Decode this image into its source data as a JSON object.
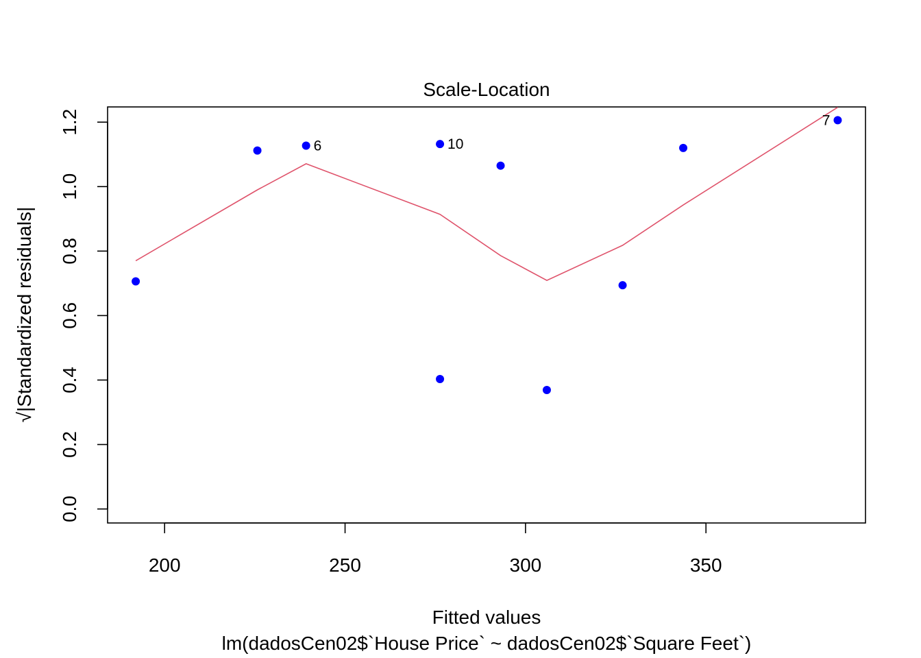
{
  "chart_data": {
    "type": "scatter",
    "title": "Scale-Location",
    "xlabel": "Fitted values",
    "ylabel": "√|Standardized residuals|",
    "subtitle": "lm(dadosCen02$`House Price` ~ dadosCen02$`Square Feet`)",
    "xlim": [
      184.2,
      394.2
    ],
    "ylim": [
      -0.0434,
      1.2472
    ],
    "xticks": [
      200,
      250,
      300,
      350
    ],
    "yticks": [
      0.0,
      0.2,
      0.4,
      0.6,
      0.8,
      1.0,
      1.2
    ],
    "ytick_labels": [
      "0.0",
      "0.2",
      "0.4",
      "0.6",
      "0.8",
      "1.0",
      "1.2"
    ],
    "point_color": "#0000ff",
    "line_color": "#df536b",
    "points": [
      {
        "x": 192.0,
        "y": 0.706,
        "label": ""
      },
      {
        "x": 225.7,
        "y": 1.112,
        "label": ""
      },
      {
        "x": 239.2,
        "y": 1.127,
        "label": "6"
      },
      {
        "x": 276.3,
        "y": 1.132,
        "label": "10"
      },
      {
        "x": 276.3,
        "y": 0.403,
        "label": ""
      },
      {
        "x": 293.1,
        "y": 1.065,
        "label": ""
      },
      {
        "x": 305.9,
        "y": 0.369,
        "label": ""
      },
      {
        "x": 326.9,
        "y": 0.694,
        "label": ""
      },
      {
        "x": 343.7,
        "y": 1.12,
        "label": ""
      },
      {
        "x": 386.5,
        "y": 1.206,
        "label": "7"
      }
    ],
    "smooth_line": [
      {
        "x": 192.0,
        "y": 0.77
      },
      {
        "x": 225.7,
        "y": 0.99
      },
      {
        "x": 239.2,
        "y": 1.071
      },
      {
        "x": 276.3,
        "y": 0.914
      },
      {
        "x": 293.1,
        "y": 0.786
      },
      {
        "x": 305.9,
        "y": 0.709
      },
      {
        "x": 326.9,
        "y": 0.818
      },
      {
        "x": 343.7,
        "y": 0.943
      },
      {
        "x": 386.5,
        "y": 1.246
      }
    ]
  }
}
